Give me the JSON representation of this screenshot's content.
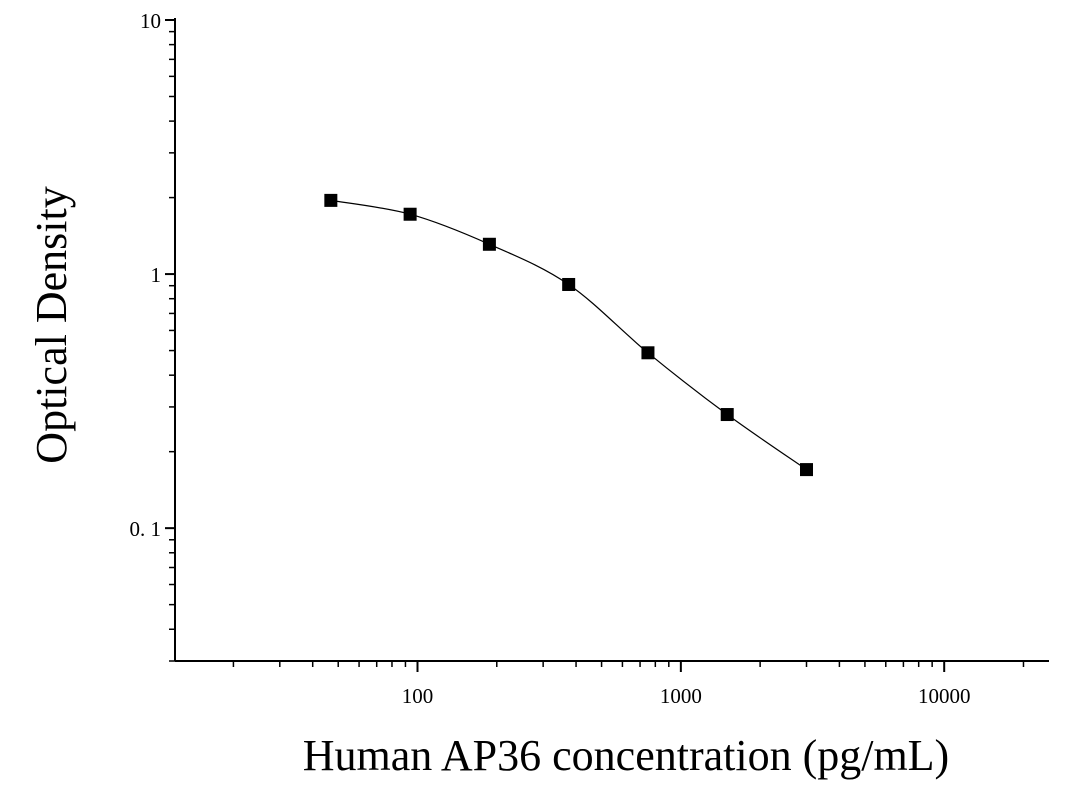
{
  "chart_data": {
    "type": "scatter",
    "title": "",
    "xlabel": "Human AP36 concentration (pg/mL)",
    "ylabel": "Optical Density",
    "x_scale": "log",
    "y_scale": "log",
    "xlim": [
      12,
      25000
    ],
    "ylim": [
      0.03,
      10
    ],
    "x_tick_labels": [
      {
        "value": 100,
        "label": "100"
      },
      {
        "value": 1000,
        "label": "1000"
      },
      {
        "value": 10000,
        "label": "10000"
      }
    ],
    "y_tick_labels": [
      {
        "value": 10,
        "label": "10"
      },
      {
        "value": 1,
        "label": "1"
      },
      {
        "value": 0.1,
        "label": "0. 1"
      }
    ],
    "grid": false,
    "legend": "none",
    "series": [
      {
        "x": [
          46.875,
          93.75,
          187.5,
          375,
          750,
          1500,
          3000
        ],
        "y": [
          1.95,
          1.72,
          1.31,
          0.91,
          0.49,
          0.28,
          0.17
        ],
        "marker": "square",
        "color": "#000000",
        "fit_line": true
      }
    ]
  }
}
